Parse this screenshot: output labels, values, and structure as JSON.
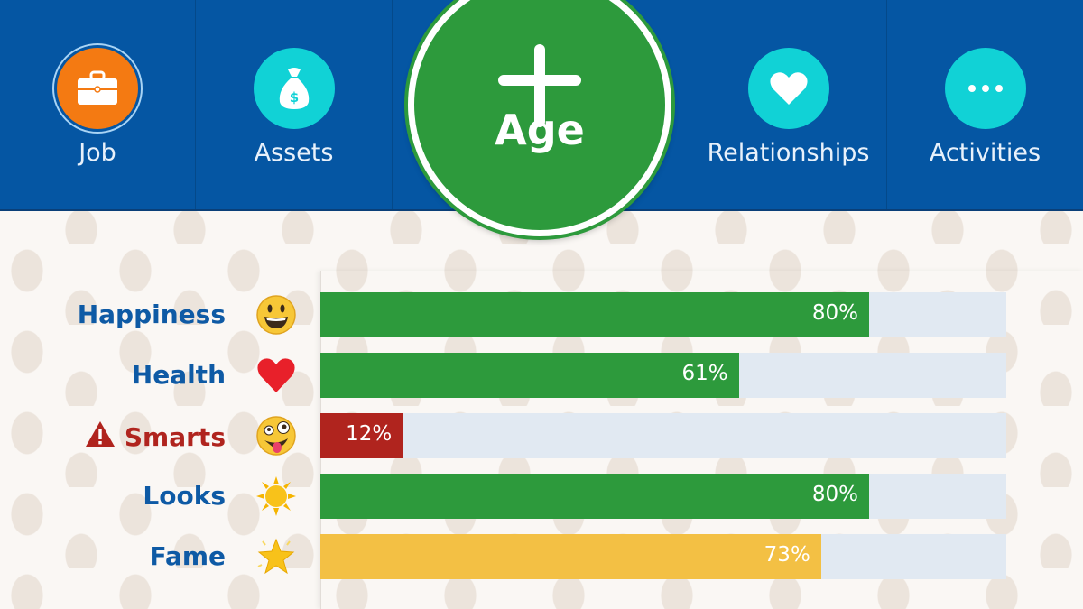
{
  "nav": {
    "tabs": [
      {
        "label": "Job",
        "icon": "briefcase-icon",
        "color": "#f47a12"
      },
      {
        "label": "Assets",
        "icon": "money-bag-icon",
        "color": "#11d2d6"
      },
      {
        "label": "Relationships",
        "icon": "heart-icon",
        "color": "#11d2d6"
      },
      {
        "label": "Activities",
        "icon": "ellipsis-icon",
        "color": "#11d2d6"
      }
    ],
    "age_button": {
      "label": "Age",
      "icon": "plus-icon",
      "color": "#2d9a3c"
    }
  },
  "stats": [
    {
      "label": "Happiness",
      "value": 80,
      "value_text": "80%",
      "icon": "grinning-face-icon",
      "color": "#2d9a3c",
      "warning": false
    },
    {
      "label": "Health",
      "value": 61,
      "value_text": "61%",
      "icon": "red-heart-icon",
      "color": "#2d9a3c",
      "warning": false
    },
    {
      "label": "Smarts",
      "value": 12,
      "value_text": "12%",
      "icon": "zany-face-icon",
      "color": "#b0241e",
      "warning": true
    },
    {
      "label": "Looks",
      "value": 80,
      "value_text": "80%",
      "icon": "sun-icon",
      "color": "#2d9a3c",
      "warning": false
    },
    {
      "label": "Fame",
      "value": 73,
      "value_text": "73%",
      "icon": "star-icon",
      "color": "#f3c044",
      "warning": false
    }
  ]
}
